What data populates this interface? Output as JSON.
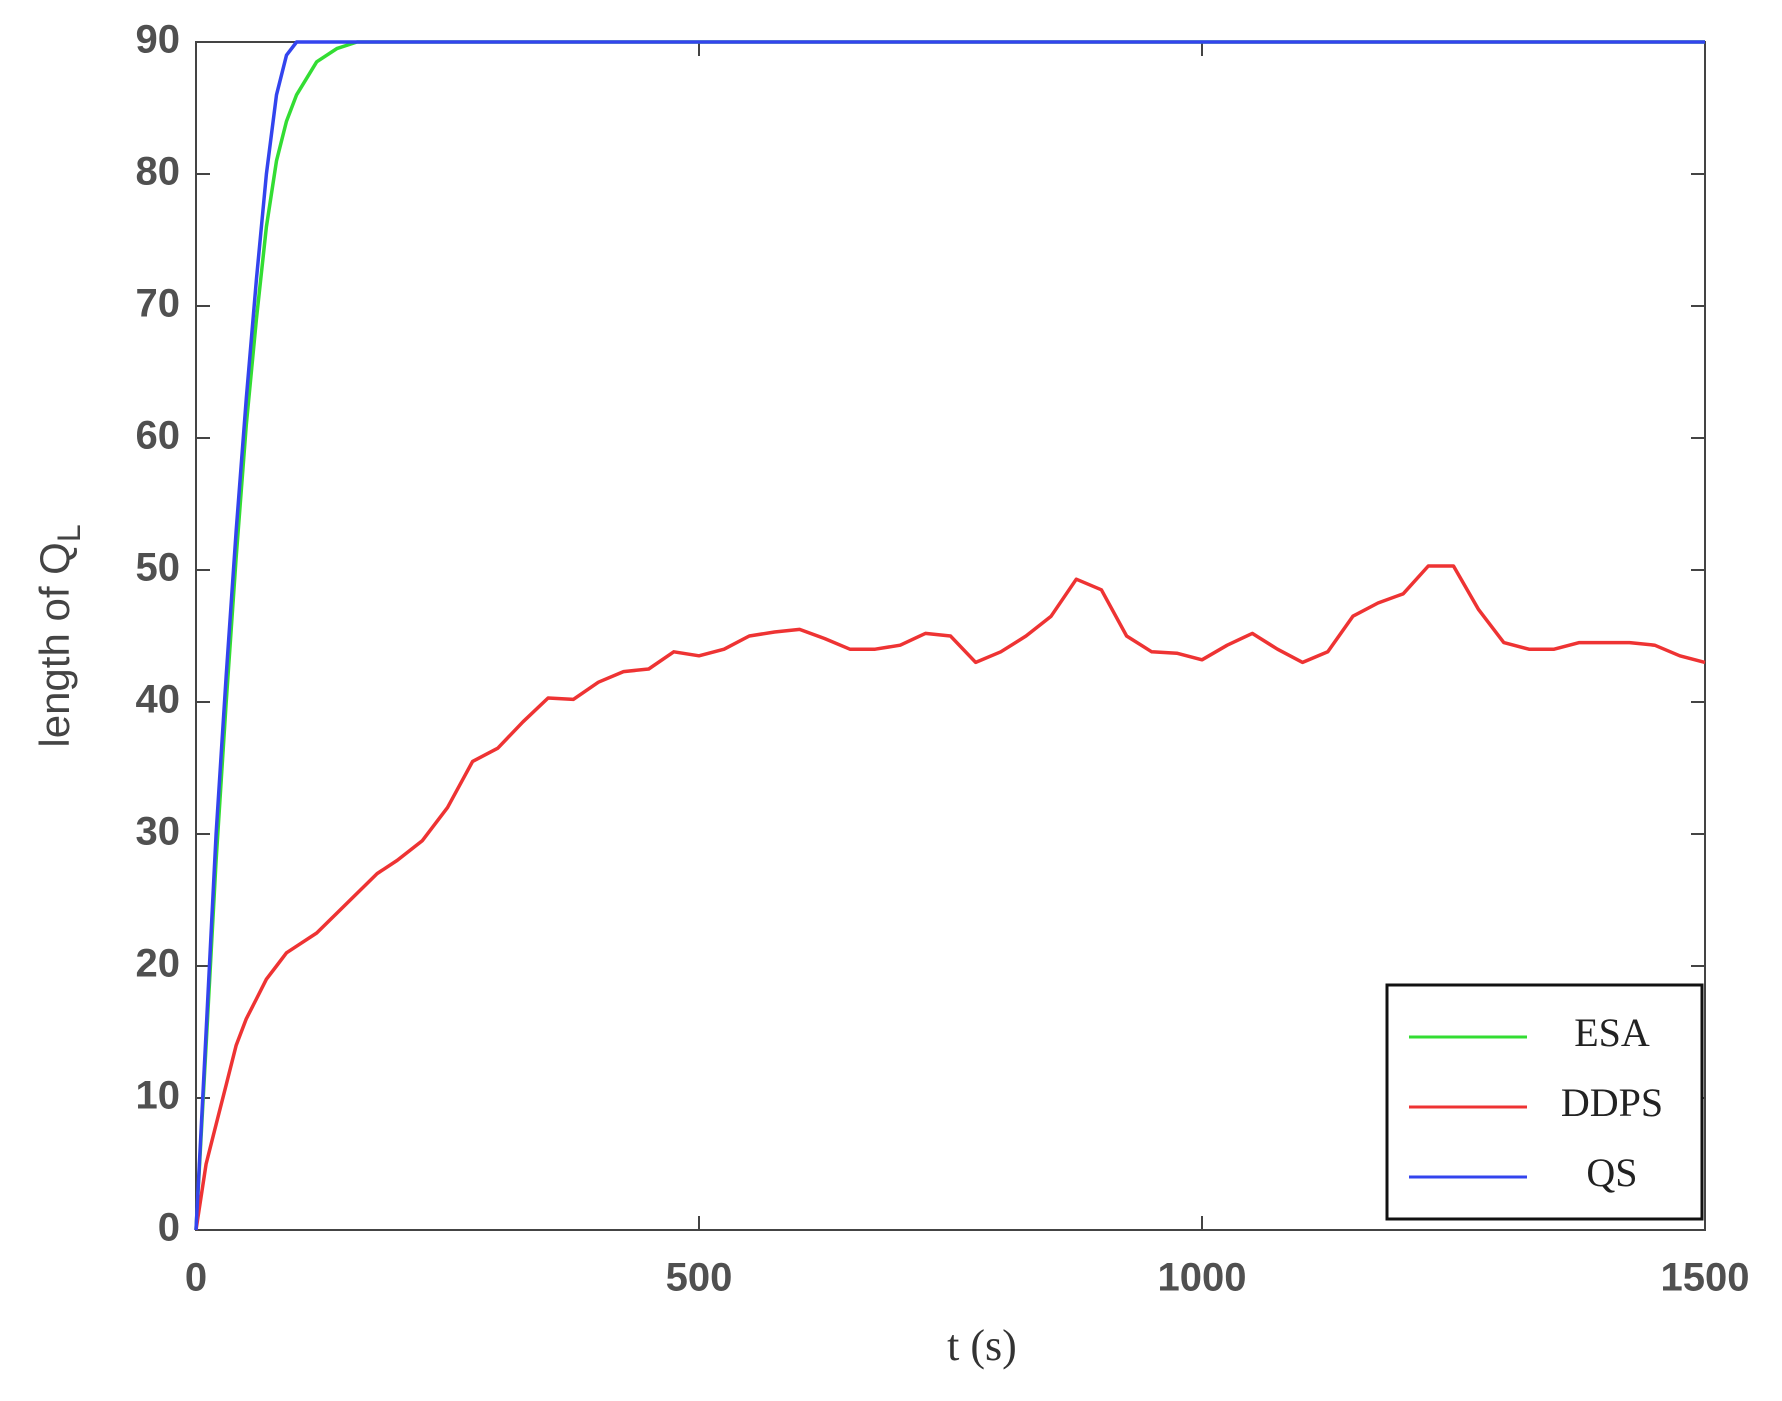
{
  "chart_data": {
    "type": "line",
    "xlabel": "t (s)",
    "ylabel": "length of Q",
    "ylabel_subscript": "L",
    "x": [
      0,
      10,
      20,
      30,
      40,
      50,
      60,
      70,
      80,
      90,
      100,
      120,
      140,
      160,
      180,
      200,
      225,
      250,
      275,
      300,
      325,
      350,
      375,
      400,
      425,
      450,
      475,
      500,
      525,
      550,
      575,
      600,
      625,
      650,
      675,
      700,
      725,
      750,
      775,
      800,
      825,
      850,
      875,
      900,
      925,
      950,
      975,
      1000,
      1025,
      1050,
      1075,
      1100,
      1125,
      1150,
      1175,
      1200,
      1225,
      1250,
      1275,
      1300,
      1325,
      1350,
      1375,
      1400,
      1425,
      1450,
      1475,
      1500
    ],
    "series": [
      {
        "name": "ESA",
        "color": "#33dd33",
        "values": [
          0,
          14,
          28,
          40,
          51,
          61,
          69,
          76,
          81,
          84,
          86,
          88.5,
          89.5,
          90,
          90,
          90,
          90,
          90,
          90,
          90,
          90,
          90,
          90,
          90,
          90,
          90,
          90,
          90,
          90,
          90,
          90,
          90,
          90,
          90,
          90,
          90,
          90,
          90,
          90,
          90,
          90,
          90,
          90,
          90,
          90,
          90,
          90,
          90,
          90,
          90,
          90,
          90,
          90,
          90,
          90,
          90,
          90,
          90,
          90,
          90,
          90,
          90,
          90,
          90,
          90,
          90,
          90,
          90
        ]
      },
      {
        "name": "DDPS",
        "color": "#ee3333",
        "values": [
          0,
          5,
          8,
          11,
          14,
          16,
          17.5,
          19,
          20,
          21,
          21.5,
          22.5,
          24,
          25.5,
          27,
          28,
          29.5,
          32,
          35.5,
          36.5,
          38.5,
          40.3,
          40.2,
          41.5,
          42.3,
          42.5,
          43.8,
          43.5,
          44,
          45,
          45.3,
          45.5,
          44.8,
          44,
          44,
          44.3,
          45.2,
          45,
          43,
          43.8,
          45,
          46.5,
          49.3,
          48.5,
          45,
          43.8,
          43.7,
          43.2,
          44.3,
          45.2,
          44,
          43,
          43.8,
          46.5,
          47.5,
          48.2,
          50.3,
          50.3,
          47,
          44.5,
          44,
          44,
          44.5,
          44.5,
          44.5,
          44.3,
          43.5,
          43
        ]
      },
      {
        "name": "QS",
        "color": "#3344ee",
        "values": [
          0,
          15,
          30,
          42,
          53,
          63,
          72,
          80,
          86,
          89,
          90,
          90,
          90,
          90,
          90,
          90,
          90,
          90,
          90,
          90,
          90,
          90,
          90,
          90,
          90,
          90,
          90,
          90,
          90,
          90,
          90,
          90,
          90,
          90,
          90,
          90,
          90,
          90,
          90,
          90,
          90,
          90,
          90,
          90,
          90,
          90,
          90,
          90,
          90,
          90,
          90,
          90,
          90,
          90,
          90,
          90,
          90,
          90,
          90,
          90,
          90,
          90,
          90,
          90,
          90,
          90,
          90,
          90
        ]
      }
    ],
    "xlim": [
      0,
      1500
    ],
    "ylim": [
      0,
      90
    ],
    "xticks": [
      0,
      500,
      1000,
      1500
    ],
    "yticks": [
      0,
      10,
      20,
      30,
      40,
      50,
      60,
      70,
      80,
      90
    ],
    "legend": "lower right"
  }
}
